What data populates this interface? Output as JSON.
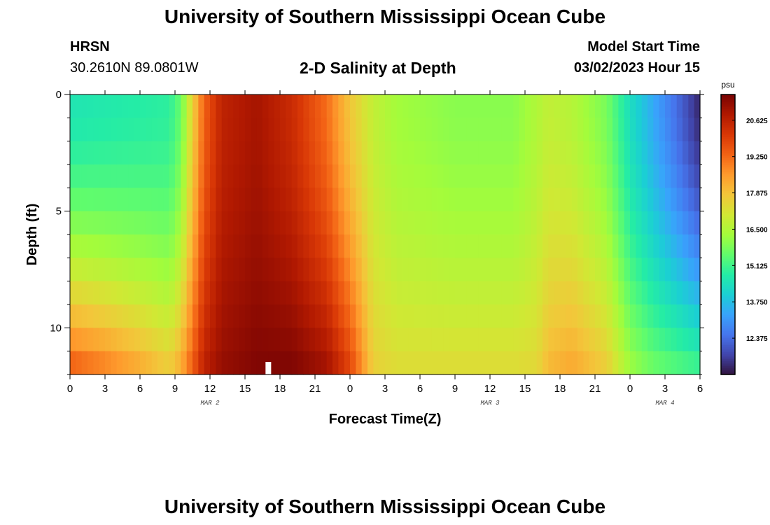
{
  "header": {
    "title": "University of Southern Mississippi Ocean Cube",
    "station_name": "HRSN",
    "station_coords": "30.2610N  89.0801W",
    "plot_subtitle": "2-D Salinity at Depth",
    "model_label": "Model Start Time",
    "model_datetime": "03/02/2023 Hour 15"
  },
  "footer": {
    "title": "University of Southern Mississippi Ocean Cube"
  },
  "chart_data": {
    "type": "heatmap",
    "title": "2-D Salinity at Depth",
    "xlabel": "Forecast Time(Z)",
    "ylabel": "Depth (ft)",
    "x_range_hours": [
      0,
      54
    ],
    "y_range_ft": [
      0,
      12
    ],
    "x_tick_labels": [
      "0",
      "3",
      "6",
      "9",
      "12",
      "15",
      "18",
      "21",
      "0",
      "3",
      "6",
      "9",
      "12",
      "15",
      "18",
      "21",
      "0",
      "3",
      "6"
    ],
    "x_tick_hours": [
      0,
      3,
      6,
      9,
      12,
      15,
      18,
      21,
      24,
      27,
      30,
      33,
      36,
      39,
      42,
      45,
      48,
      51,
      54
    ],
    "date_labels": [
      {
        "text": "MAR 2",
        "hour": 12
      },
      {
        "text": "MAR 3",
        "hour": 36
      },
      {
        "text": "MAR 4",
        "hour": 51
      }
    ],
    "y_tick_labels": [
      "0",
      "5",
      "10"
    ],
    "y_tick_values": [
      0,
      5,
      10
    ],
    "current_time_marker_hour": 17,
    "colorbar": {
      "unit": "psu",
      "min": 11.0,
      "max": 21.6,
      "tick_labels": [
        "20.625",
        "19.250",
        "17.875",
        "16.500",
        "15.125",
        "13.750",
        "12.375"
      ],
      "tick_values": [
        20.625,
        19.25,
        17.875,
        16.5,
        15.125,
        13.75,
        12.375
      ],
      "colors": [
        "#30123b",
        "#4145ab",
        "#4675ed",
        "#39a2fc",
        "#1bcfd4",
        "#24eca6",
        "#61fc6c",
        "#a4fc3b",
        "#d1e834",
        "#f3c63a",
        "#fe9b2d",
        "#f36315",
        "#d93806",
        "#b11901",
        "#7a0403"
      ]
    },
    "depth_levels_ft": [
      0,
      1,
      2,
      3,
      4,
      5,
      6,
      7,
      8,
      9,
      10,
      11
    ],
    "salinity_profiles_surface_to_bottom": {
      "hours": [
        0,
        3,
        6,
        8.5,
        9.5,
        10.5,
        11.5,
        13,
        16,
        19,
        22,
        24,
        26,
        28,
        33,
        38,
        40,
        41,
        43,
        46,
        48,
        50,
        52,
        54
      ],
      "surface_psu": [
        14.6,
        14.7,
        14.8,
        14.9,
        15.6,
        17.6,
        19.4,
        20.6,
        21.0,
        20.4,
        19.2,
        17.8,
        16.8,
        16.3,
        16.0,
        16.0,
        16.5,
        16.8,
        16.6,
        15.8,
        14.4,
        13.4,
        12.4,
        11.3
      ],
      "bottom_psu": [
        19.3,
        18.8,
        18.2,
        17.6,
        18.2,
        19.4,
        20.6,
        21.2,
        21.5,
        21.5,
        21.0,
        19.8,
        17.6,
        17.3,
        17.3,
        17.3,
        17.4,
        18.0,
        18.3,
        17.6,
        16.2,
        15.6,
        15.3,
        15.0
      ]
    }
  }
}
